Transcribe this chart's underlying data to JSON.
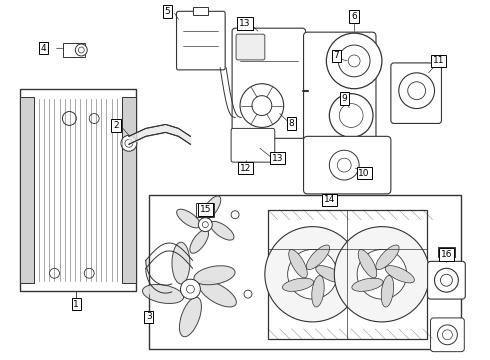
{
  "bg_color": "#ffffff",
  "line_color": "#333333",
  "fig_width": 4.9,
  "fig_height": 3.6,
  "dpi": 100,
  "font_size": 6.5,
  "label_fs": 6.5
}
